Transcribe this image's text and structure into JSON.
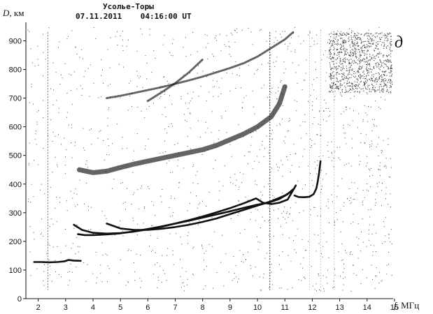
{
  "chart_data": {
    "type": "scatter",
    "title": "Усолье-Торы",
    "subtitle": "07.11.2011    04:16:00 UT",
    "panel_label": "д",
    "ylabel_var": "D",
    "ylabel_unit": ", км",
    "xlabel_var": "f",
    "xlabel_unit": ", МГц",
    "xlim": [
      1.55,
      14.95
    ],
    "ylim": [
      0,
      950
    ],
    "x_ticks": [
      2,
      3,
      4,
      5,
      6,
      7,
      8,
      9,
      10,
      11,
      12,
      13,
      14,
      15
    ],
    "y_ticks": [
      0,
      100,
      200,
      300,
      400,
      500,
      600,
      700,
      800,
      900
    ],
    "grid": false,
    "colors": {
      "trace": "#111111",
      "noise": "#444444",
      "text": "#111111"
    },
    "traces": [
      {
        "x": [
          1.85,
          2.1,
          2.4,
          2.7,
          2.95,
          3.1,
          3.3,
          3.55
        ],
        "y": [
          128,
          128,
          127,
          128,
          130,
          135,
          133,
          132
        ]
      },
      {
        "x": [
          3.45,
          3.7,
          4.0,
          4.5,
          5.0,
          5.5,
          6.0,
          6.5,
          7.0,
          7.5,
          8.0,
          8.5,
          9.0,
          9.5,
          10.0,
          10.4,
          10.8,
          11.1,
          11.3
        ],
        "y": [
          225,
          222,
          222,
          224,
          228,
          235,
          243,
          252,
          262,
          272,
          283,
          294,
          305,
          317,
          328,
          335,
          348,
          365,
          382
        ]
      },
      {
        "x": [
          3.3,
          3.6,
          4.0,
          4.5,
          5.0,
          5.5,
          6.0,
          6.5,
          7.0,
          7.5,
          8.0,
          8.5,
          9.0,
          9.5,
          9.95,
          10.2,
          10.5,
          10.8,
          11.1,
          11.4
        ],
        "y": [
          258,
          240,
          230,
          227,
          229,
          234,
          242,
          251,
          262,
          274,
          287,
          301,
          316,
          333,
          350,
          335,
          330,
          335,
          346,
          395
        ]
      },
      {
        "x": [
          4.5,
          5.0,
          5.5,
          6.0,
          6.5,
          7.0,
          7.5,
          8.0,
          8.5,
          9.0,
          9.5,
          10.0,
          10.5,
          11.0,
          11.25
        ],
        "y": [
          262,
          245,
          240,
          240,
          244,
          250,
          258,
          268,
          280,
          295,
          310,
          325,
          340,
          360,
          375
        ]
      },
      {
        "x": [
          11.35,
          11.5,
          11.7,
          11.9,
          12.05,
          12.15,
          12.2,
          12.25,
          12.3
        ],
        "y": [
          360,
          355,
          354,
          356,
          365,
          385,
          410,
          440,
          480
        ]
      },
      {
        "x": [
          3.5,
          4.0,
          4.5,
          5.0,
          5.5,
          6.0,
          6.5,
          7.0,
          7.5,
          8.0,
          8.5,
          9.0,
          9.5,
          10.0,
          10.5,
          10.8,
          11.0
        ],
        "y": [
          450,
          440,
          445,
          458,
          470,
          480,
          490,
          500,
          510,
          520,
          535,
          555,
          575,
          600,
          635,
          680,
          740
        ]
      },
      {
        "x": [
          4.5,
          5.0,
          5.5,
          6.0,
          6.5,
          7.0,
          7.5,
          8.0,
          8.5,
          9.0,
          9.5,
          10.0,
          10.5,
          11.0,
          11.3
        ],
        "y": [
          700,
          708,
          718,
          728,
          738,
          750,
          762,
          775,
          790,
          805,
          822,
          845,
          875,
          905,
          930
        ]
      },
      {
        "x": [
          6.0,
          6.5,
          7.0,
          7.5,
          8.0
        ],
        "y": [
          690,
          720,
          752,
          790,
          835
        ]
      }
    ]
  }
}
